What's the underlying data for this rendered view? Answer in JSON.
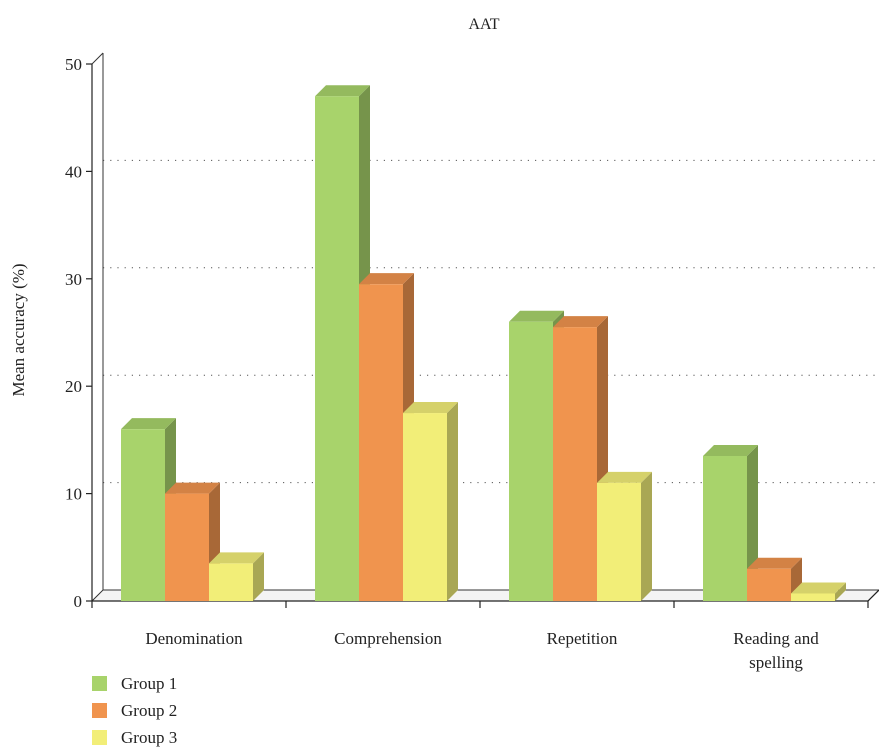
{
  "chart_data": {
    "type": "bar",
    "title": "AAT",
    "xlabel": "",
    "ylabel": "Mean accuracy (%)",
    "ylim": [
      0,
      50
    ],
    "yticks": [
      0,
      10,
      20,
      30,
      40,
      50
    ],
    "grid": "dotted horizontal",
    "legend_position": "bottom-left",
    "categories": [
      "Denomination",
      "Comprehension",
      "Repetition",
      "Reading and spelling"
    ],
    "series": [
      {
        "name": "Group 1",
        "values": [
          16,
          47,
          26,
          13.5
        ],
        "color": "#a8d36b"
      },
      {
        "name": "Group 2",
        "values": [
          10,
          29.5,
          25.5,
          3
        ],
        "color": "#f0944e"
      },
      {
        "name": "Group 3",
        "values": [
          3.5,
          17.5,
          11,
          0.7
        ],
        "color": "#f2ee78"
      }
    ]
  }
}
